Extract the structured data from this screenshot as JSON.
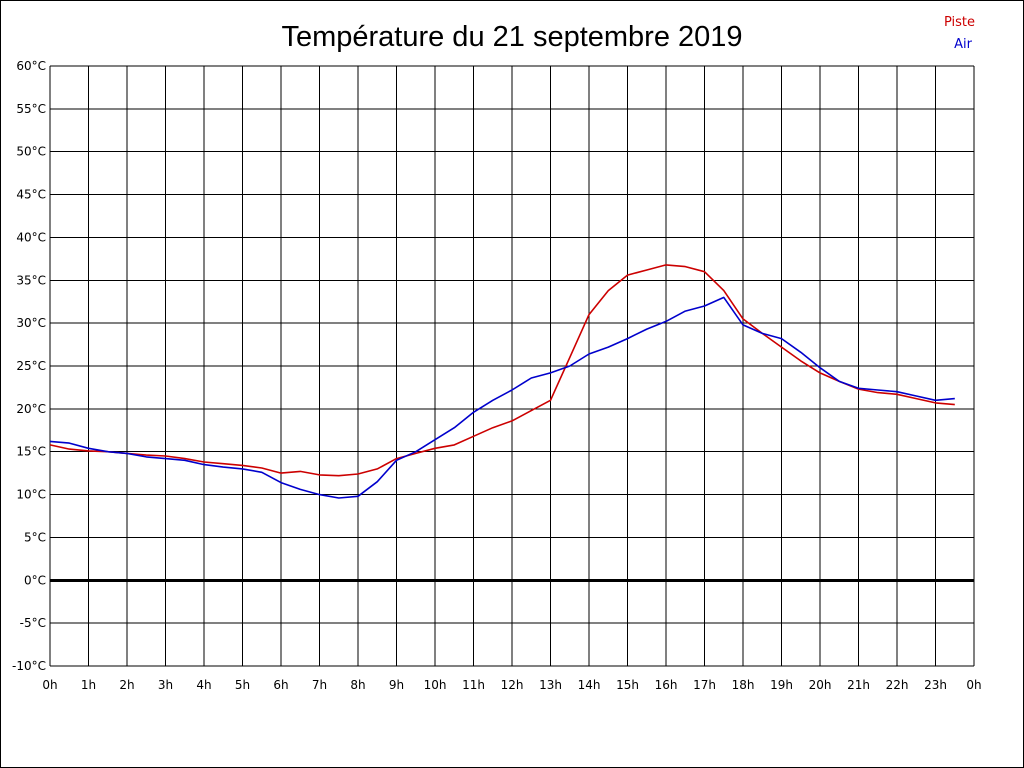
{
  "chart_data": {
    "type": "line",
    "title": "Température du 21 septembre 2019",
    "xlabel": "",
    "ylabel": "",
    "xlim": [
      0,
      24
    ],
    "ylim": [
      -10,
      60
    ],
    "x_tick_labels": [
      "0h",
      "1h",
      "2h",
      "3h",
      "4h",
      "5h",
      "6h",
      "7h",
      "8h",
      "9h",
      "10h",
      "11h",
      "12h",
      "13h",
      "14h",
      "15h",
      "16h",
      "17h",
      "18h",
      "19h",
      "20h",
      "21h",
      "22h",
      "23h",
      "0h"
    ],
    "y_tick_labels": [
      "60°C",
      "55°C",
      "50°C",
      "45°C",
      "40°C",
      "35°C",
      "30°C",
      "25°C",
      "20°C",
      "15°C",
      "10°C",
      "5°C",
      "0°C",
      "-5°C",
      "-10°C"
    ],
    "grid": true,
    "legend_position": "top-right",
    "zero_line": true,
    "series": [
      {
        "name": "Piste",
        "color": "#cc0000",
        "x": [
          0,
          0.5,
          1,
          1.5,
          2,
          2.5,
          3,
          3.5,
          4,
          4.5,
          5,
          5.5,
          6,
          6.5,
          7,
          7.5,
          8,
          8.5,
          9,
          9.5,
          10,
          10.5,
          11,
          11.5,
          12,
          12.5,
          13,
          13.5,
          14,
          14.5,
          15,
          15.5,
          16,
          16.5,
          17,
          17.5,
          18,
          18.5,
          19,
          19.5,
          20,
          20.5,
          21,
          21.5,
          22,
          22.5,
          23,
          23.5
        ],
        "values": [
          15.8,
          15.3,
          15.1,
          15.0,
          14.8,
          14.6,
          14.5,
          14.2,
          13.8,
          13.6,
          13.4,
          13.1,
          12.5,
          12.7,
          12.3,
          12.2,
          12.4,
          13.0,
          14.2,
          14.8,
          15.4,
          15.8,
          16.8,
          17.8,
          18.6,
          19.8,
          21.0,
          26.0,
          31.0,
          33.8,
          35.6,
          36.2,
          36.8,
          36.6,
          36.0,
          33.8,
          30.5,
          28.8,
          27.2,
          25.6,
          24.2,
          23.2,
          22.3,
          21.9,
          21.7,
          21.2,
          20.7,
          20.5
        ]
      },
      {
        "name": "Air",
        "color": "#0000cc",
        "x": [
          0,
          0.5,
          1,
          1.5,
          2,
          2.5,
          3,
          3.5,
          4,
          4.5,
          5,
          5.5,
          6,
          6.5,
          7,
          7.5,
          8,
          8.5,
          9,
          9.5,
          10,
          10.5,
          11,
          11.5,
          12,
          12.5,
          13,
          13.5,
          14,
          14.5,
          15,
          15.5,
          16,
          16.5,
          17,
          17.5,
          18,
          18.5,
          19,
          19.5,
          20,
          20.5,
          21,
          21.5,
          22,
          22.5,
          23,
          23.5
        ],
        "values": [
          16.2,
          16.0,
          15.4,
          15.0,
          14.8,
          14.4,
          14.2,
          14.0,
          13.5,
          13.2,
          13.0,
          12.6,
          11.4,
          10.6,
          10.0,
          9.6,
          9.8,
          11.5,
          14.0,
          15.0,
          16.4,
          17.8,
          19.6,
          21.0,
          22.2,
          23.6,
          24.2,
          25.0,
          26.4,
          27.2,
          28.2,
          29.3,
          30.2,
          31.4,
          32.0,
          33.0,
          29.8,
          28.8,
          28.2,
          26.6,
          24.8,
          23.2,
          22.4,
          22.2,
          22.0,
          21.5,
          21.0,
          21.2
        ]
      }
    ]
  }
}
